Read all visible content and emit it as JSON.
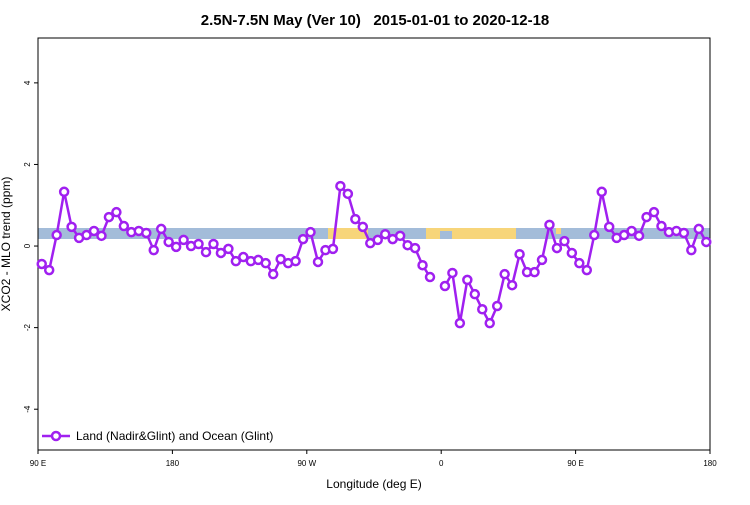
{
  "chart_data": {
    "type": "line",
    "title": "2.5N-7.5N May (Ver 10)   2015-01-01 to 2020-12-18",
    "xlabel": "Longitude (deg E)",
    "ylabel": "XCO2 - MLO trend (ppm)",
    "xlim": [
      90,
      540
    ],
    "ylim": [
      -5,
      5.1
    ],
    "xticks": [
      {
        "value": 90,
        "label": "90 E"
      },
      180,
      {
        "value": 270,
        "label": "90 W"
      },
      {
        "value": 360,
        "label": "0"
      },
      {
        "value": 450,
        "label": "90 E"
      },
      {
        "value": 540,
        "label": "180"
      }
    ],
    "yticks": [
      -4,
      -2,
      0,
      2,
      4
    ],
    "legend": "bottom-left",
    "x": [
      92.5,
      97.5,
      102.5,
      107.5,
      112.5,
      117.5,
      122.5,
      127.5,
      132.5,
      137.5,
      142.5,
      147.5,
      152.5,
      157.5,
      162.5,
      167.5,
      172.5,
      177.5,
      182.5,
      187.5,
      192.5,
      197.5,
      202.5,
      207.5,
      212.5,
      217.5,
      222.5,
      227.5,
      232.5,
      237.5,
      242.5,
      247.5,
      252.5,
      257.5,
      262.5,
      267.5,
      272.5,
      277.5,
      282.5,
      287.5,
      292.5,
      297.5,
      302.5,
      307.5,
      312.5,
      317.5,
      322.5,
      327.5,
      332.5,
      337.5,
      342.5,
      347.5,
      352.5,
      357.5,
      362.5,
      367.5,
      372.5,
      377.5,
      382.5,
      387.5,
      392.5,
      397.5,
      402.5,
      407.5,
      412.5,
      417.5,
      422.5,
      427.5,
      432.5,
      437.5,
      442.5,
      447.5,
      452.5,
      457.5,
      462.5,
      467.5,
      472.5,
      477.5,
      482.5,
      487.5,
      492.5,
      497.5,
      502.5,
      507.5,
      512.5,
      517.5,
      522.5,
      527.5,
      532.5,
      537.5
    ],
    "series": [
      {
        "name": "Land (Nadir&Glint) and Ocean (Glint)",
        "color": "#a020f0",
        "values": [
          -0.44,
          -0.59,
          0.27,
          1.33,
          0.47,
          0.2,
          0.27,
          0.37,
          0.25,
          0.71,
          0.83,
          0.49,
          0.34,
          0.37,
          0.32,
          -0.1,
          0.42,
          0.1,
          -0.02,
          0.15,
          0,
          0.05,
          -0.15,
          0.05,
          -0.17,
          -0.07,
          -0.37,
          -0.27,
          -0.37,
          -0.34,
          -0.42,
          -0.69,
          -0.32,
          -0.42,
          -0.37,
          0.17,
          0.34,
          -0.39,
          -0.1,
          -0.07,
          1.47,
          1.28,
          0.66,
          0.47,
          0.07,
          0.15,
          0.29,
          0.17,
          0.25,
          0.02,
          -0.05,
          -0.47,
          -0.76,
          null,
          -0.98,
          -0.66,
          -1.89,
          -0.83,
          -1.18,
          -1.55,
          -1.89,
          -1.47,
          -0.69,
          -0.96,
          -0.2,
          -0.64,
          -0.64,
          -0.34,
          0.52,
          -0.05,
          0.12,
          -0.17,
          -0.42,
          -0.59,
          0.27,
          1.33,
          0.47,
          0.2,
          0.27,
          0.37,
          0.25,
          0.71,
          0.83,
          0.49,
          0.34,
          0.37,
          0.32,
          -0.1,
          0.42,
          0.1
        ]
      }
    ]
  }
}
